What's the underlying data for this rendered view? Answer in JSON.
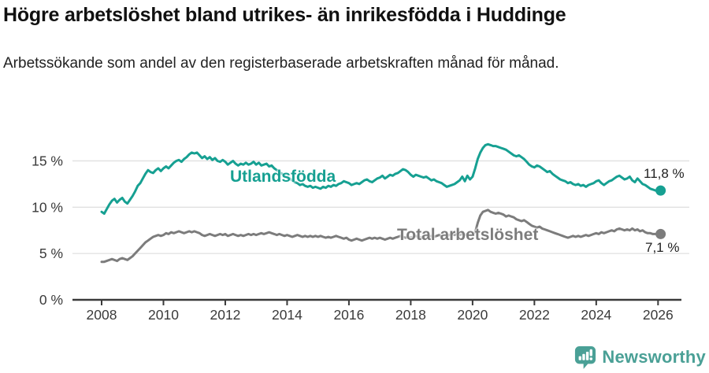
{
  "colors": {
    "foreign_born": "#16a092",
    "total": "#7c7c7c",
    "axis": "#3a3a3a",
    "grid": "#e0e0e0",
    "title_text": "#111111",
    "end_label_text": "#212121",
    "brand": "#4aa096"
  },
  "footer": {
    "brand_name": "Newsworthy"
  },
  "chart_data": {
    "type": "line",
    "title": "Högre arbetslöshet bland utrikes- än inrikesfödda i Huddinge",
    "subtitle": "Arbetssökande som andel av den registerbaserade arbetskraften månad för månad.",
    "xlabel": "",
    "ylabel": "",
    "grid": true,
    "legend": "inline-labels",
    "x_unit": "year",
    "x_start_year": 2008,
    "points_per_year": 12,
    "xlim": [
      2007.05,
      2027.0
    ],
    "ylim": [
      0,
      18
    ],
    "x_ticks": [
      2008,
      2010,
      2012,
      2014,
      2016,
      2018,
      2020,
      2022,
      2024,
      2026
    ],
    "y_ticks": [
      {
        "value": 0,
        "label": "0 %"
      },
      {
        "value": 5,
        "label": "5 %"
      },
      {
        "value": 10,
        "label": "10 %"
      },
      {
        "value": 15,
        "label": "15 %"
      }
    ],
    "series": [
      {
        "name": "Utlandsfödda",
        "color_key": "foreign_born",
        "end_label": "11,8 %",
        "end_value": 11.8,
        "values": [
          9.5,
          9.3,
          9.8,
          10.3,
          10.7,
          10.9,
          10.5,
          10.8,
          11.0,
          10.6,
          10.4,
          10.8,
          11.2,
          11.7,
          12.3,
          12.6,
          13.1,
          13.6,
          14.0,
          13.8,
          13.7,
          14.0,
          14.2,
          13.9,
          14.2,
          14.4,
          14.2,
          14.5,
          14.8,
          15.0,
          15.1,
          14.9,
          15.2,
          15.4,
          15.7,
          15.9,
          15.8,
          15.9,
          15.6,
          15.3,
          15.5,
          15.2,
          15.4,
          15.1,
          15.3,
          15.0,
          14.9,
          15.1,
          14.9,
          14.6,
          14.8,
          15.0,
          14.7,
          14.5,
          14.7,
          14.6,
          14.8,
          14.6,
          14.7,
          14.9,
          14.6,
          14.8,
          14.5,
          14.6,
          14.7,
          14.4,
          14.5,
          14.2,
          14.0,
          13.8,
          13.6,
          13.4,
          13.3,
          13.1,
          12.9,
          12.7,
          12.6,
          12.4,
          12.5,
          12.3,
          12.2,
          12.3,
          12.1,
          12.2,
          12.1,
          12.0,
          12.2,
          12.1,
          12.3,
          12.2,
          12.4,
          12.3,
          12.5,
          12.6,
          12.8,
          12.7,
          12.6,
          12.4,
          12.5,
          12.6,
          12.5,
          12.7,
          12.9,
          13.0,
          12.8,
          12.7,
          12.9,
          13.1,
          13.2,
          13.4,
          13.1,
          13.3,
          13.5,
          13.4,
          13.6,
          13.7,
          13.9,
          14.1,
          14.0,
          13.8,
          13.5,
          13.3,
          13.5,
          13.4,
          13.3,
          13.2,
          13.3,
          13.1,
          12.9,
          13.0,
          12.8,
          12.7,
          12.6,
          12.4,
          12.2,
          12.3,
          12.4,
          12.5,
          12.7,
          12.9,
          13.3,
          12.8,
          13.4,
          13.0,
          13.3,
          14.2,
          15.2,
          15.9,
          16.4,
          16.7,
          16.8,
          16.7,
          16.6,
          16.6,
          16.5,
          16.4,
          16.3,
          16.2,
          16.0,
          15.8,
          15.6,
          15.5,
          15.6,
          15.4,
          15.2,
          14.9,
          14.6,
          14.4,
          14.3,
          14.5,
          14.4,
          14.2,
          14.0,
          13.8,
          13.9,
          13.6,
          13.4,
          13.2,
          13.0,
          12.9,
          12.8,
          12.6,
          12.7,
          12.5,
          12.4,
          12.5,
          12.3,
          12.4,
          12.2,
          12.4,
          12.5,
          12.6,
          12.8,
          12.9,
          12.6,
          12.4,
          12.6,
          12.8,
          12.9,
          13.1,
          13.3,
          13.4,
          13.2,
          13.0,
          13.1,
          13.3,
          12.9,
          12.7,
          13.1,
          12.8,
          12.5,
          12.4,
          12.2,
          12.0,
          11.9,
          11.8,
          11.9,
          11.8
        ]
      },
      {
        "name": "Total arbetslöshet",
        "color_key": "total",
        "end_label": "7,1 %",
        "end_value": 7.1,
        "values": [
          4.1,
          4.1,
          4.2,
          4.3,
          4.4,
          4.3,
          4.2,
          4.4,
          4.5,
          4.4,
          4.3,
          4.5,
          4.7,
          5.0,
          5.3,
          5.6,
          5.9,
          6.2,
          6.4,
          6.6,
          6.8,
          6.9,
          7.0,
          6.9,
          7.0,
          7.2,
          7.1,
          7.3,
          7.2,
          7.3,
          7.4,
          7.3,
          7.2,
          7.3,
          7.4,
          7.3,
          7.4,
          7.3,
          7.2,
          7.0,
          6.9,
          7.0,
          7.1,
          7.0,
          6.9,
          7.0,
          7.1,
          7.0,
          7.1,
          6.9,
          7.0,
          7.1,
          7.0,
          6.9,
          7.0,
          6.9,
          7.0,
          7.1,
          7.0,
          7.1,
          7.0,
          7.1,
          7.2,
          7.1,
          7.2,
          7.3,
          7.2,
          7.1,
          7.0,
          7.1,
          7.0,
          6.9,
          7.0,
          6.9,
          6.8,
          6.9,
          7.0,
          6.9,
          6.8,
          6.9,
          6.8,
          6.9,
          6.8,
          6.9,
          6.8,
          6.9,
          6.8,
          6.7,
          6.8,
          6.7,
          6.8,
          6.9,
          6.8,
          6.7,
          6.6,
          6.7,
          6.5,
          6.4,
          6.5,
          6.6,
          6.5,
          6.4,
          6.5,
          6.6,
          6.7,
          6.6,
          6.7,
          6.6,
          6.7,
          6.6,
          6.5,
          6.6,
          6.7,
          6.6,
          6.7,
          6.8,
          6.9,
          6.8,
          6.7,
          6.8,
          6.7,
          6.8,
          6.9,
          6.8,
          6.7,
          6.8,
          6.9,
          6.8,
          6.9,
          6.8,
          6.9,
          7.0,
          6.9,
          7.0,
          6.9,
          7.0,
          7.1,
          7.0,
          7.1,
          7.0,
          7.1,
          7.0,
          7.1,
          7.2,
          7.1,
          7.3,
          8.3,
          9.1,
          9.5,
          9.6,
          9.7,
          9.5,
          9.4,
          9.3,
          9.4,
          9.3,
          9.2,
          9.0,
          9.1,
          9.0,
          8.9,
          8.7,
          8.6,
          8.5,
          8.6,
          8.4,
          8.2,
          8.0,
          7.9,
          7.8,
          7.9,
          7.7,
          7.6,
          7.5,
          7.4,
          7.3,
          7.2,
          7.1,
          7.0,
          6.9,
          6.8,
          6.7,
          6.8,
          6.9,
          6.8,
          6.9,
          6.8,
          6.9,
          7.0,
          6.9,
          7.0,
          7.1,
          7.2,
          7.1,
          7.3,
          7.2,
          7.3,
          7.4,
          7.5,
          7.4,
          7.6,
          7.7,
          7.6,
          7.5,
          7.6,
          7.5,
          7.7,
          7.5,
          7.6,
          7.4,
          7.5,
          7.3,
          7.2,
          7.2,
          7.1,
          7.1,
          7.1,
          7.1
        ]
      }
    ]
  }
}
